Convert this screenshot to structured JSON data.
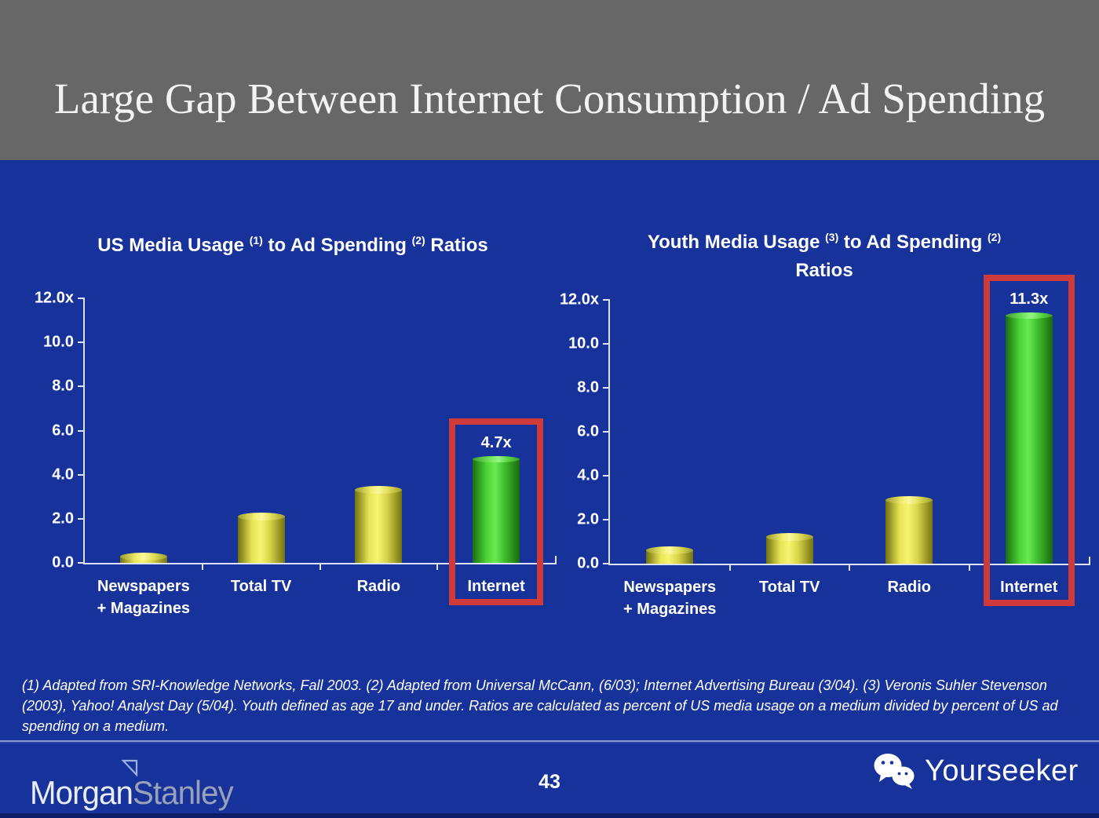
{
  "slide": {
    "title": "Large Gap Between Internet Consumption / Ad Spending",
    "page_number": "43",
    "footnote": "(1) Adapted from SRI-Knowledge Networks, Fall 2003.  (2) Adapted from Universal McCann, (6/03); Internet Advertising Bureau (3/04). (3) Veronis Suhler Stevenson (2003), Yahoo! Analyst Day (5/04).  Youth defined as age 17 and under.  Ratios are calculated as percent of US media usage on a medium divided by percent of US ad spending on a medium.",
    "brand": {
      "word1": "Morgan",
      "word2": "Stanley"
    },
    "watermark_label": "Yourseeker"
  },
  "colors": {
    "header_gray": "#676767",
    "background_blue": "#17339b",
    "bar_yellow": "#f2ef66",
    "bar_green": "#5ee246",
    "highlight_red": "#cf3a3a",
    "axis_line": "#dce3f8",
    "text_white": "#ffffff"
  },
  "chart_data": [
    {
      "type": "bar",
      "title_tokens": [
        {
          "t": "US Media Usage "
        },
        {
          "s": "(1)"
        },
        {
          "t": " to Ad Spending "
        },
        {
          "s": "(2)"
        },
        {
          "t": " Ratios"
        }
      ],
      "categories": [
        [
          "Newspapers",
          "+ Magazines"
        ],
        [
          "Total TV"
        ],
        [
          "Radio"
        ],
        [
          "Internet"
        ]
      ],
      "values": [
        0.3,
        2.1,
        3.3,
        4.7
      ],
      "bar_styles": [
        "yellow",
        "yellow",
        "yellow",
        "green"
      ],
      "data_labels": {
        "3": "4.7x"
      },
      "highlight_index": 3,
      "ylim": [
        0,
        12
      ],
      "yticks": [
        "12.0x",
        "10.0",
        "8.0",
        "6.0",
        "4.0",
        "2.0",
        "0.0"
      ],
      "grid": false,
      "legend": false
    },
    {
      "type": "bar",
      "title_tokens": [
        {
          "t": "Youth Media Usage "
        },
        {
          "s": "(3)"
        },
        {
          "t": " to Ad Spending "
        },
        {
          "s": "(2)"
        },
        {
          "br": true
        },
        {
          "t": "Ratios"
        }
      ],
      "categories": [
        [
          "Newspapers",
          "+ Magazines"
        ],
        [
          "Total TV"
        ],
        [
          "Radio"
        ],
        [
          "Internet"
        ]
      ],
      "values": [
        0.6,
        1.2,
        2.9,
        11.3
      ],
      "bar_styles": [
        "yellow",
        "yellow",
        "yellow",
        "green"
      ],
      "data_labels": {
        "3": "11.3x"
      },
      "highlight_index": 3,
      "ylim": [
        0,
        12
      ],
      "yticks": [
        "12.0x",
        "10.0",
        "8.0",
        "6.0",
        "4.0",
        "2.0",
        "0.0"
      ],
      "grid": false,
      "legend": false
    }
  ]
}
